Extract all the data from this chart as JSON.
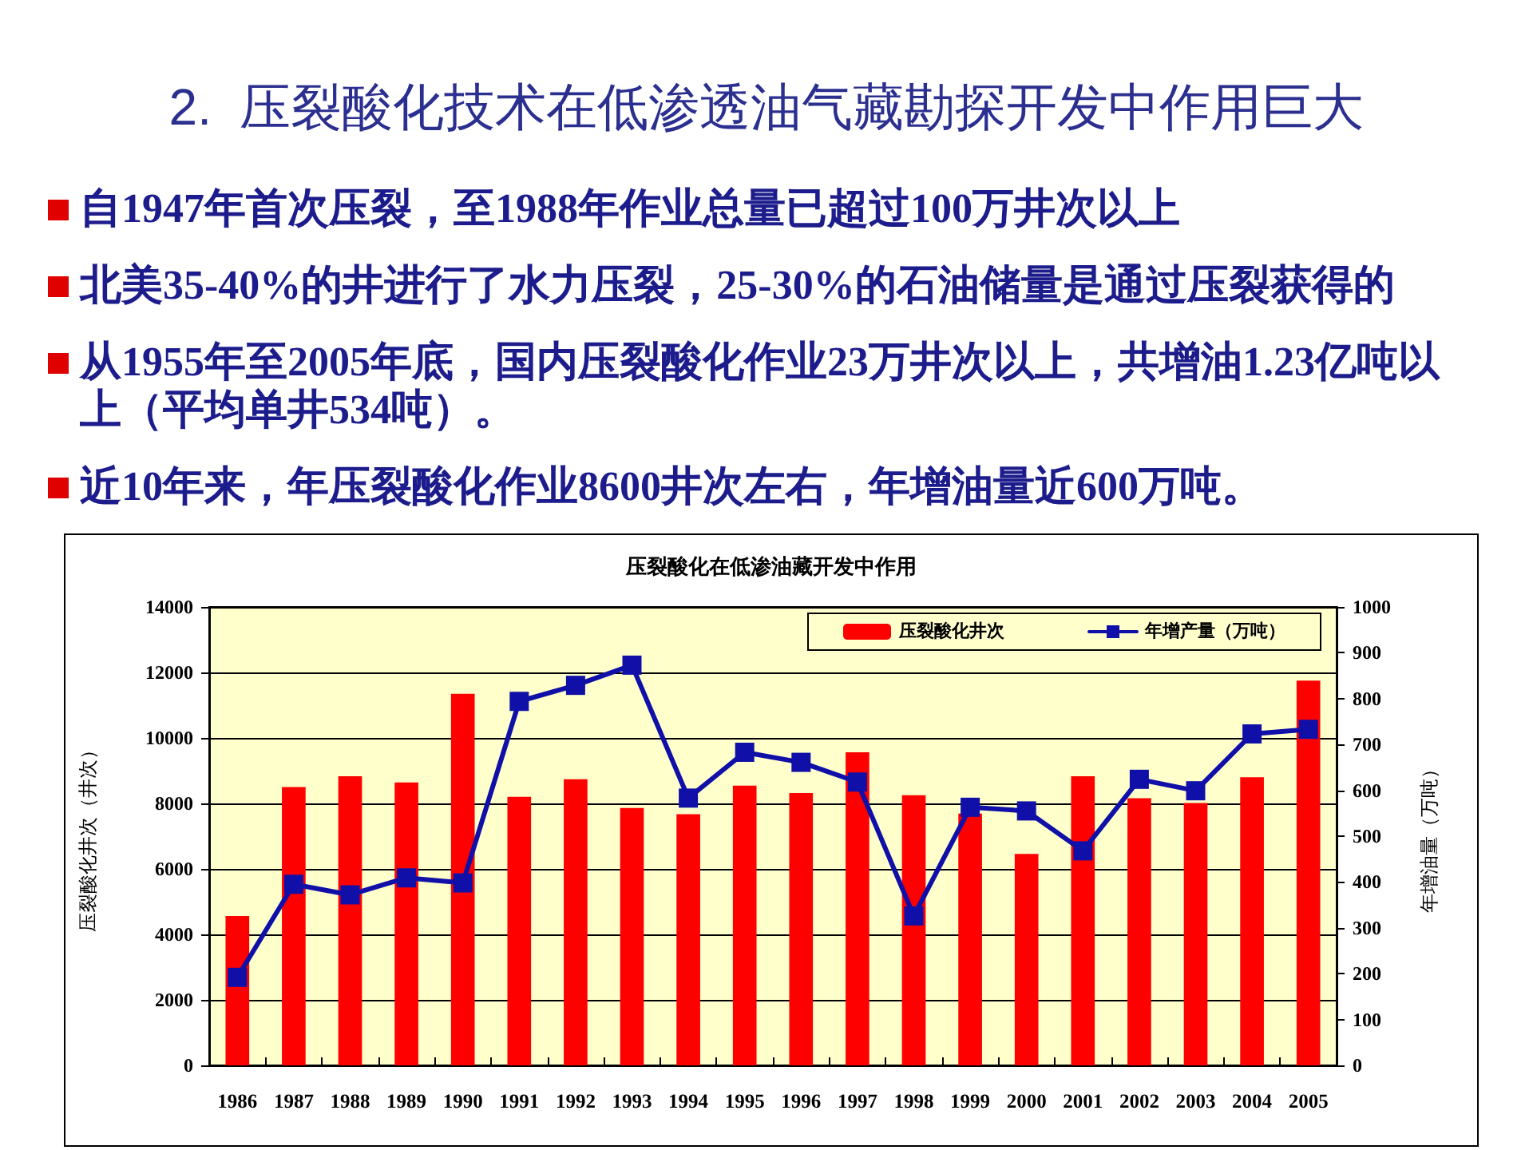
{
  "chart_data": {
    "type": "bar",
    "title": "2.  压裂酸化技术在低渗透油气藏勘探开发中作用巨大",
    "subtitle": "压裂酸化在低渗油藏开发中作用",
    "annotations": [
      "自1947年首次压裂，至1988年作业总量已超过100万井次以上",
      "北美35-40%的井进行了水力压裂，25-30%的石油储量是通过压裂获得的",
      "从1955年至2005年底，国内压裂酸化作业23万井次以上，共增油1.23亿吨以上（平均单井534吨）。",
      "近10年来，年压裂酸化作业8600井次左右，年增油量近600万吨。"
    ],
    "ylabel": "压裂酸化井次（井次）",
    "y2label": "年增油量（万吨）",
    "categories": [
      "1986",
      "1987",
      "1988",
      "1989",
      "1990",
      "1991",
      "1992",
      "1993",
      "1994",
      "1995",
      "1996",
      "1997",
      "1998",
      "1999",
      "2000",
      "2001",
      "2002",
      "2003",
      "2004",
      "2005"
    ],
    "series": [
      {
        "name": "压裂酸化井次",
        "color": "#ff0000",
        "values": [
          4560,
          8500,
          8830,
          8640,
          11350,
          8200,
          8740,
          7860,
          7670,
          8540,
          8320,
          9560,
          8250,
          7690,
          6460,
          8830,
          8160,
          8010,
          8800,
          11750
        ]
      },
      {
        "name": "年增产量（万吨）",
        "type": "line",
        "axis": "y2",
        "color": "#1010a8",
        "values": [
          192,
          395,
          372,
          409,
          398,
          794,
          829,
          873,
          583,
          683,
          661,
          618,
          326,
          563,
          555,
          468,
          624,
          599,
          723,
          733
        ]
      }
    ],
    "ylim": [
      0,
      14000
    ],
    "yticks": [
      0,
      2000,
      4000,
      6000,
      8000,
      10000,
      12000,
      14000
    ],
    "y2lim": [
      0,
      1000
    ],
    "y2ticks": [
      0,
      100,
      200,
      300,
      400,
      500,
      600,
      700,
      800,
      900,
      1000
    ],
    "grid": "y",
    "legend": "top right",
    "marker": "square",
    "line_style": "solid"
  }
}
